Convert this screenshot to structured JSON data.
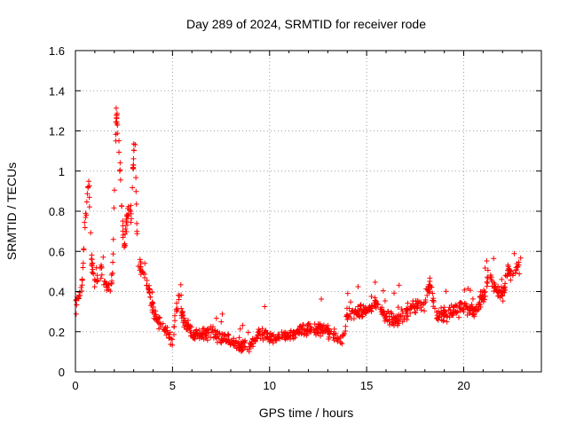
{
  "chart_data": {
    "type": "scatter",
    "title": "Day 289 of 2024, SRMTID for receiver rode",
    "xlabel": "GPS time / hours",
    "ylabel": "SRMTID / TECUs",
    "xlim": [
      0,
      24
    ],
    "ylim": [
      0,
      1.6
    ],
    "xticks": [
      0,
      5,
      10,
      15,
      20
    ],
    "yticks": [
      0,
      0.2,
      0.4,
      0.6,
      0.8,
      1,
      1.2,
      1.4,
      1.6
    ],
    "ytick_labels": [
      "0",
      "0.2",
      "0.4",
      "0.6",
      "0.8",
      "1",
      "1.2",
      "1.4",
      "1.6"
    ],
    "grid": true,
    "marker": "+",
    "color": "#ff0000",
    "trend": [
      [
        0.0,
        0.33
      ],
      [
        0.3,
        0.38
      ],
      [
        0.5,
        0.75
      ],
      [
        0.7,
        0.95
      ],
      [
        0.8,
        0.55
      ],
      [
        1.0,
        0.45
      ],
      [
        1.3,
        0.5
      ],
      [
        1.6,
        0.42
      ],
      [
        1.9,
        0.45
      ],
      [
        2.1,
        1.3
      ],
      [
        2.3,
        1.0
      ],
      [
        2.5,
        0.6
      ],
      [
        2.7,
        0.8
      ],
      [
        2.9,
        0.78
      ],
      [
        3.05,
        1.25
      ],
      [
        3.2,
        0.55
      ],
      [
        3.5,
        0.5
      ],
      [
        3.8,
        0.4
      ],
      [
        4.0,
        0.3
      ],
      [
        4.3,
        0.26
      ],
      [
        4.7,
        0.2
      ],
      [
        5.0,
        0.15
      ],
      [
        5.3,
        0.38
      ],
      [
        5.6,
        0.25
      ],
      [
        6.0,
        0.18
      ],
      [
        7.0,
        0.19
      ],
      [
        8.0,
        0.15
      ],
      [
        9.0,
        0.12
      ],
      [
        9.5,
        0.2
      ],
      [
        10.0,
        0.17
      ],
      [
        11.0,
        0.18
      ],
      [
        12.0,
        0.22
      ],
      [
        13.0,
        0.2
      ],
      [
        13.7,
        0.15
      ],
      [
        14.0,
        0.28
      ],
      [
        14.5,
        0.3
      ],
      [
        15.0,
        0.3
      ],
      [
        15.5,
        0.35
      ],
      [
        16.0,
        0.28
      ],
      [
        16.5,
        0.25
      ],
      [
        17.0,
        0.3
      ],
      [
        17.5,
        0.32
      ],
      [
        18.0,
        0.35
      ],
      [
        18.3,
        0.45
      ],
      [
        18.5,
        0.28
      ],
      [
        19.0,
        0.28
      ],
      [
        19.5,
        0.3
      ],
      [
        20.0,
        0.32
      ],
      [
        20.5,
        0.3
      ],
      [
        21.0,
        0.38
      ],
      [
        21.3,
        0.5
      ],
      [
        21.6,
        0.42
      ],
      [
        22.0,
        0.38
      ],
      [
        22.3,
        0.5
      ],
      [
        22.6,
        0.48
      ],
      [
        22.9,
        0.55
      ]
    ],
    "spread": 0.06,
    "n_points": 1100,
    "x_range": [
      0.02,
      22.95
    ]
  }
}
